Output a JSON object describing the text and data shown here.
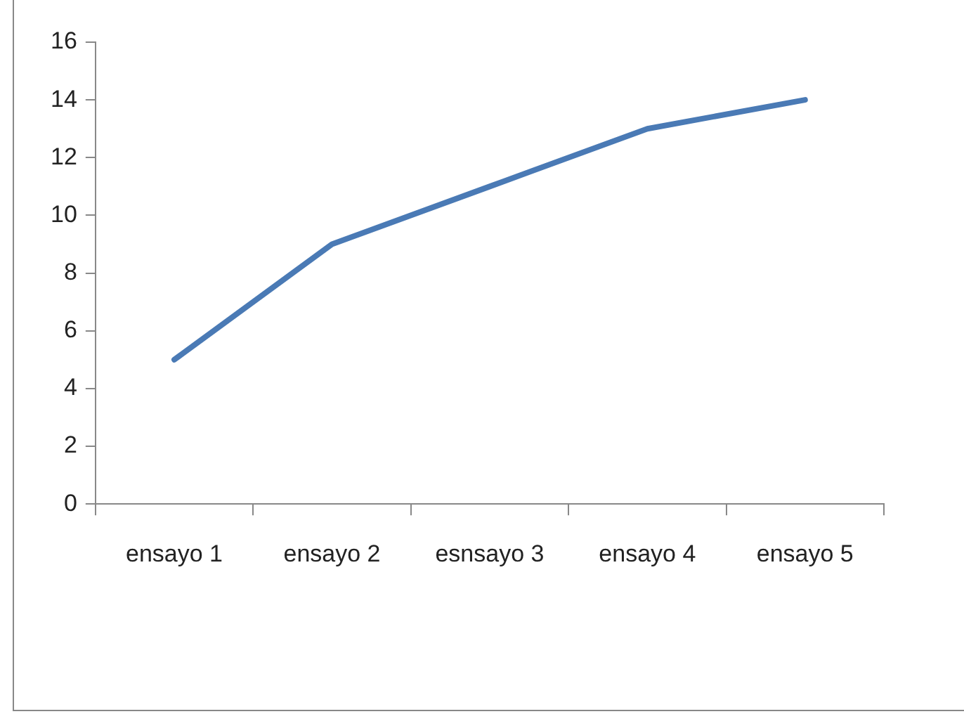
{
  "chart_data": {
    "type": "line",
    "categories": [
      "ensayo 1",
      "ensayo 2",
      "esnsayo 3",
      "ensayo 4",
      "ensayo 5"
    ],
    "series": [
      {
        "color": "#4a7ab5",
        "values": [
          5,
          9,
          11,
          13,
          14
        ]
      }
    ],
    "ylim": [
      0,
      16
    ],
    "yticks": [
      0,
      2,
      4,
      6,
      8,
      10,
      12,
      14,
      16
    ],
    "grid": false,
    "legend": false,
    "marker": "none",
    "line_style": "solid"
  }
}
